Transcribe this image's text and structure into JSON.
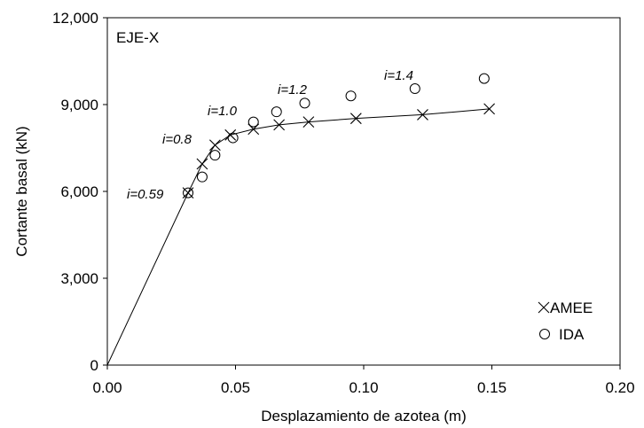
{
  "chart_data": {
    "type": "scatter",
    "panel_label": "EJE-X",
    "xlabel": "Desplazamiento de azotea (m)",
    "ylabel": "Cortante basal  (kN)",
    "xlim": [
      0,
      0.2
    ],
    "ylim": [
      0,
      12000
    ],
    "x_ticks": [
      "0.00",
      "0.05",
      "0.10",
      "0.15",
      "0.20"
    ],
    "x_tick_values": [
      0,
      0.05,
      0.1,
      0.15,
      0.2
    ],
    "y_ticks": [
      "0",
      "3,000",
      "6,000",
      "9,000",
      "12,000"
    ],
    "y_tick_values": [
      0,
      3000,
      6000,
      9000,
      12000
    ],
    "grid": false,
    "legend_position": "bottom-right",
    "series": [
      {
        "name": "AMEE",
        "marker": "x",
        "line": true,
        "x": [
          0.0,
          0.0315,
          0.037,
          0.042,
          0.048,
          0.057,
          0.067,
          0.0785,
          0.097,
          0.123,
          0.149
        ],
        "y": [
          0,
          5950,
          6950,
          7600,
          7950,
          8150,
          8300,
          8400,
          8520,
          8650,
          8850
        ],
        "marker_from_index": 1
      },
      {
        "name": "IDA",
        "marker": "circle",
        "line": false,
        "x": [
          0.0315,
          0.037,
          0.042,
          0.049,
          0.057,
          0.066,
          0.077,
          0.095,
          0.12,
          0.147
        ],
        "y": [
          5950,
          6500,
          7250,
          7850,
          8400,
          8750,
          9050,
          9300,
          9550,
          9900
        ]
      }
    ],
    "annotations": [
      {
        "text": "i=0.59",
        "x": 0.0,
        "y": 5950
      },
      {
        "text": "i=0.8",
        "x": 0.0,
        "y": 7700
      },
      {
        "text": "i=1.0",
        "x": 0.0,
        "y": 8850
      },
      {
        "text": "i=1.2",
        "x": 0.0,
        "y": 9550
      },
      {
        "text": "i=1.4",
        "x": 0.0,
        "y": 10050
      }
    ]
  }
}
